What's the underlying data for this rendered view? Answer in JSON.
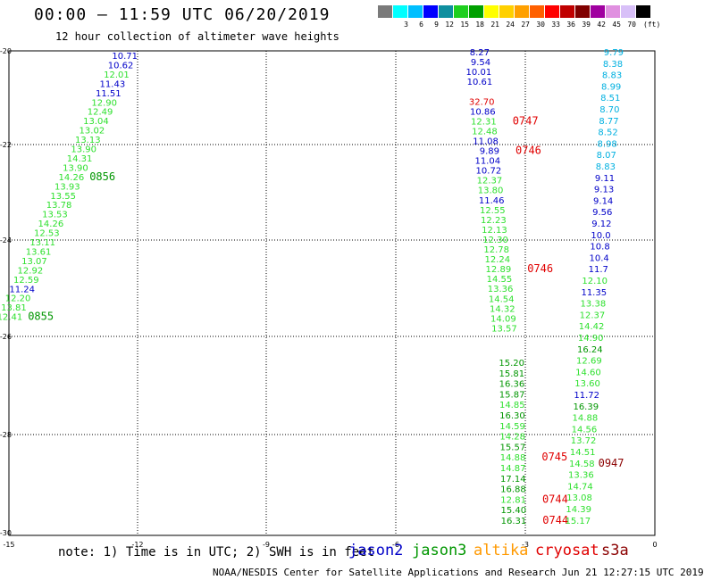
{
  "header": {
    "title": "00:00 — 11:59 UTC 06/20/2019",
    "subtitle": "12 hour collection of altimeter wave heights"
  },
  "colorbar": {
    "unit": "(ft)",
    "swatches": [
      {
        "label": "",
        "color": "#7a7a7a"
      },
      {
        "label": "3",
        "color": "#00ffff"
      },
      {
        "label": "6",
        "color": "#00bfff"
      },
      {
        "label": "9",
        "color": "#0000ff"
      },
      {
        "label": "12",
        "color": "#0f8f9f"
      },
      {
        "label": "15",
        "color": "#1ecf1e"
      },
      {
        "label": "18",
        "color": "#00a000"
      },
      {
        "label": "21",
        "color": "#ffff00"
      },
      {
        "label": "24",
        "color": "#ffd000"
      },
      {
        "label": "27",
        "color": "#ffa000"
      },
      {
        "label": "30",
        "color": "#ff6000"
      },
      {
        "label": "33",
        "color": "#ff0000"
      },
      {
        "label": "36",
        "color": "#c00000"
      },
      {
        "label": "39",
        "color": "#800000"
      },
      {
        "label": "42",
        "color": "#a000a0"
      },
      {
        "label": "45",
        "color": "#e090e0"
      },
      {
        "label": "70",
        "color": "#d8c0f8"
      },
      {
        "label": "",
        "color": "#000000"
      }
    ]
  },
  "colors": {
    "jason2": "#0000c8",
    "jason3": "#009600",
    "jason3_light": "#2ee02e",
    "altika": "#ff9900",
    "cryosat": "#e00000",
    "s3a": "#8b0000",
    "cyan": "#00b0e0"
  },
  "axes": {
    "lon_ticks": [
      "-15",
      "-12",
      "-9",
      "-6",
      "-3",
      "0"
    ],
    "lat_ticks": [
      "-20",
      "-22",
      "-24",
      "-26",
      "-28",
      "-30"
    ]
  },
  "tracks": {
    "left": {
      "values": [
        {
          "t": "10.71",
          "c": "jason2"
        },
        {
          "t": "10.62",
          "c": "jason2"
        },
        {
          "t": "12.01",
          "c": "jason3_light"
        },
        {
          "t": "11.43",
          "c": "jason2"
        },
        {
          "t": "11.51",
          "c": "jason2"
        },
        {
          "t": "12.90",
          "c": "jason3_light"
        },
        {
          "t": "12.49",
          "c": "jason3_light"
        },
        {
          "t": "13.04",
          "c": "jason3_light"
        },
        {
          "t": "13.02",
          "c": "jason3_light"
        },
        {
          "t": "13.13",
          "c": "jason3_light"
        },
        {
          "t": "13.90",
          "c": "jason3_light"
        },
        {
          "t": "14.31",
          "c": "jason3_light"
        },
        {
          "t": "13.90",
          "c": "jason3_light"
        },
        {
          "t": "14.26",
          "c": "jason3_light"
        },
        {
          "t": "13.93",
          "c": "jason3_light"
        },
        {
          "t": "13.55",
          "c": "jason3_light"
        },
        {
          "t": "13.78",
          "c": "jason3_light"
        },
        {
          "t": "13.53",
          "c": "jason3_light"
        },
        {
          "t": "14.26",
          "c": "jason3_light"
        },
        {
          "t": "12.53",
          "c": "jason3_light"
        },
        {
          "t": "13.11",
          "c": "jason3_light"
        },
        {
          "t": "13.61",
          "c": "jason3_light"
        },
        {
          "t": "13.07",
          "c": "jason3_light"
        },
        {
          "t": "12.92",
          "c": "jason3_light"
        },
        {
          "t": "12.59",
          "c": "jason3_light"
        },
        {
          "t": "11.24",
          "c": "jason2"
        },
        {
          "t": "12.20",
          "c": "jason3_light"
        },
        {
          "t": "13.81",
          "c": "jason3_light"
        },
        {
          "t": "12.41",
          "c": "jason3_light"
        }
      ],
      "times": [
        {
          "t": "0856",
          "c": "jason3",
          "row": 13
        },
        {
          "t": "0855",
          "c": "jason3",
          "row": 28
        }
      ]
    },
    "mid_upper": {
      "values": [
        {
          "t": "8.27",
          "c": "jason2"
        },
        {
          "t": "9.54",
          "c": "jason2"
        },
        {
          "t": "10.01",
          "c": "jason2"
        },
        {
          "t": "10.61",
          "c": "jason2"
        },
        {
          "t": "",
          "c": "jason2"
        },
        {
          "t": "32.70",
          "c": "cryosat"
        },
        {
          "t": "10.86",
          "c": "jason2"
        },
        {
          "t": "12.31",
          "c": "jason3_light"
        },
        {
          "t": "12.48",
          "c": "jason3_light"
        },
        {
          "t": "11.08",
          "c": "jason2"
        },
        {
          "t": "9.89",
          "c": "jason2"
        },
        {
          "t": "11.04",
          "c": "jason2"
        },
        {
          "t": "10.72",
          "c": "jason2"
        },
        {
          "t": "12.37",
          "c": "jason3_light"
        },
        {
          "t": "13.80",
          "c": "jason3_light"
        },
        {
          "t": "11.46",
          "c": "jason2"
        },
        {
          "t": "12.55",
          "c": "jason3_light"
        },
        {
          "t": "12.23",
          "c": "jason3_light"
        },
        {
          "t": "12.13",
          "c": "jason3_light"
        },
        {
          "t": "12.30",
          "c": "jason3_light"
        },
        {
          "t": "12.78",
          "c": "jason3_light"
        },
        {
          "t": "12.24",
          "c": "jason3_light"
        },
        {
          "t": "12.89",
          "c": "jason3_light"
        },
        {
          "t": "14.55",
          "c": "jason3_light"
        },
        {
          "t": "13.36",
          "c": "jason3_light"
        },
        {
          "t": "14.54",
          "c": "jason3_light"
        },
        {
          "t": "14.32",
          "c": "jason3_light"
        },
        {
          "t": "14.09",
          "c": "jason3_light"
        },
        {
          "t": "13.57",
          "c": "jason3_light"
        }
      ],
      "times": [
        {
          "t": "0747",
          "c": "cryosat",
          "row": 7
        },
        {
          "t": "0746",
          "c": "cryosat",
          "row": 10
        },
        {
          "t": "0746",
          "c": "cryosat",
          "row": 22
        }
      ]
    },
    "mid_lower": {
      "values": [
        {
          "t": "15.20",
          "c": "jason3"
        },
        {
          "t": "15.81",
          "c": "jason3"
        },
        {
          "t": "16.36",
          "c": "jason3"
        },
        {
          "t": "15.87",
          "c": "jason3"
        },
        {
          "t": "14.85",
          "c": "jason3_light"
        },
        {
          "t": "16.30",
          "c": "jason3"
        },
        {
          "t": "14.59",
          "c": "jason3_light"
        },
        {
          "t": "14.28",
          "c": "jason3_light"
        },
        {
          "t": "15.57",
          "c": "jason3"
        },
        {
          "t": "14.88",
          "c": "jason3_light"
        },
        {
          "t": "14.87",
          "c": "jason3_light"
        },
        {
          "t": "17.14",
          "c": "jason3"
        },
        {
          "t": "16.88",
          "c": "jason3"
        },
        {
          "t": "12.81",
          "c": "jason3_light"
        },
        {
          "t": "15.40",
          "c": "jason3"
        },
        {
          "t": "16.31",
          "c": "jason3"
        }
      ],
      "times": [
        {
          "t": "0745",
          "c": "cryosat",
          "row": 9
        },
        {
          "t": "0744",
          "c": "cryosat",
          "row": 13
        },
        {
          "t": "0744",
          "c": "cryosat",
          "row": 15
        }
      ]
    },
    "right": {
      "values": [
        {
          "t": "9.79",
          "c": "cyan"
        },
        {
          "t": "8.38",
          "c": "cyan"
        },
        {
          "t": "8.83",
          "c": "cyan"
        },
        {
          "t": "8.99",
          "c": "cyan"
        },
        {
          "t": "8.51",
          "c": "cyan"
        },
        {
          "t": "8.70",
          "c": "cyan"
        },
        {
          "t": "8.77",
          "c": "cyan"
        },
        {
          "t": "8.52",
          "c": "cyan"
        },
        {
          "t": "8.98",
          "c": "cyan"
        },
        {
          "t": "8.07",
          "c": "cyan"
        },
        {
          "t": "8.83",
          "c": "cyan"
        },
        {
          "t": "9.11",
          "c": "jason2"
        },
        {
          "t": "9.13",
          "c": "jason2"
        },
        {
          "t": "9.14",
          "c": "jason2"
        },
        {
          "t": "9.56",
          "c": "jason2"
        },
        {
          "t": "9.12",
          "c": "jason2"
        },
        {
          "t": "10.0",
          "c": "jason2"
        },
        {
          "t": "10.8",
          "c": "jason2"
        },
        {
          "t": "10.4",
          "c": "jason2"
        },
        {
          "t": "11.7",
          "c": "jason2"
        },
        {
          "t": "12.10",
          "c": "jason3_light"
        },
        {
          "t": "11.35",
          "c": "jason2"
        },
        {
          "t": "13.38",
          "c": "jason3_light"
        },
        {
          "t": "12.37",
          "c": "jason3_light"
        },
        {
          "t": "14.42",
          "c": "jason3_light"
        },
        {
          "t": "14.90",
          "c": "jason3_light"
        },
        {
          "t": "16.24",
          "c": "jason3"
        },
        {
          "t": "12.69",
          "c": "jason3_light"
        },
        {
          "t": "14.60",
          "c": "jason3_light"
        },
        {
          "t": "13.60",
          "c": "jason3_light"
        },
        {
          "t": "11.72",
          "c": "jason2"
        },
        {
          "t": "16.39",
          "c": "jason3"
        },
        {
          "t": "14.88",
          "c": "jason3_light"
        },
        {
          "t": "14.56",
          "c": "jason3_light"
        },
        {
          "t": "13.72",
          "c": "jason3_light"
        },
        {
          "t": "14.51",
          "c": "jason3_light"
        },
        {
          "t": "14.58",
          "c": "jason3_light"
        },
        {
          "t": "13.36",
          "c": "jason3_light"
        },
        {
          "t": "14.74",
          "c": "jason3_light"
        },
        {
          "t": "13.08",
          "c": "jason3_light"
        },
        {
          "t": "14.39",
          "c": "jason3_light"
        },
        {
          "t": "15.17",
          "c": "jason3_light"
        }
      ],
      "times": [
        {
          "t": "0947",
          "c": "s3a",
          "row": 36
        }
      ]
    }
  },
  "legend": {
    "note": "note: 1) Time is in UTC; 2) SWH is in feet",
    "jason2": "jason2",
    "jason3": "jason3",
    "altika": "altika",
    "cryosat": "cryosat",
    "s3a": "s3a"
  },
  "footer": {
    "credit": "NOAA/NESDIS Center for Satellite Applications and Research   Jun 21 12:27:15 UTC 2019"
  }
}
